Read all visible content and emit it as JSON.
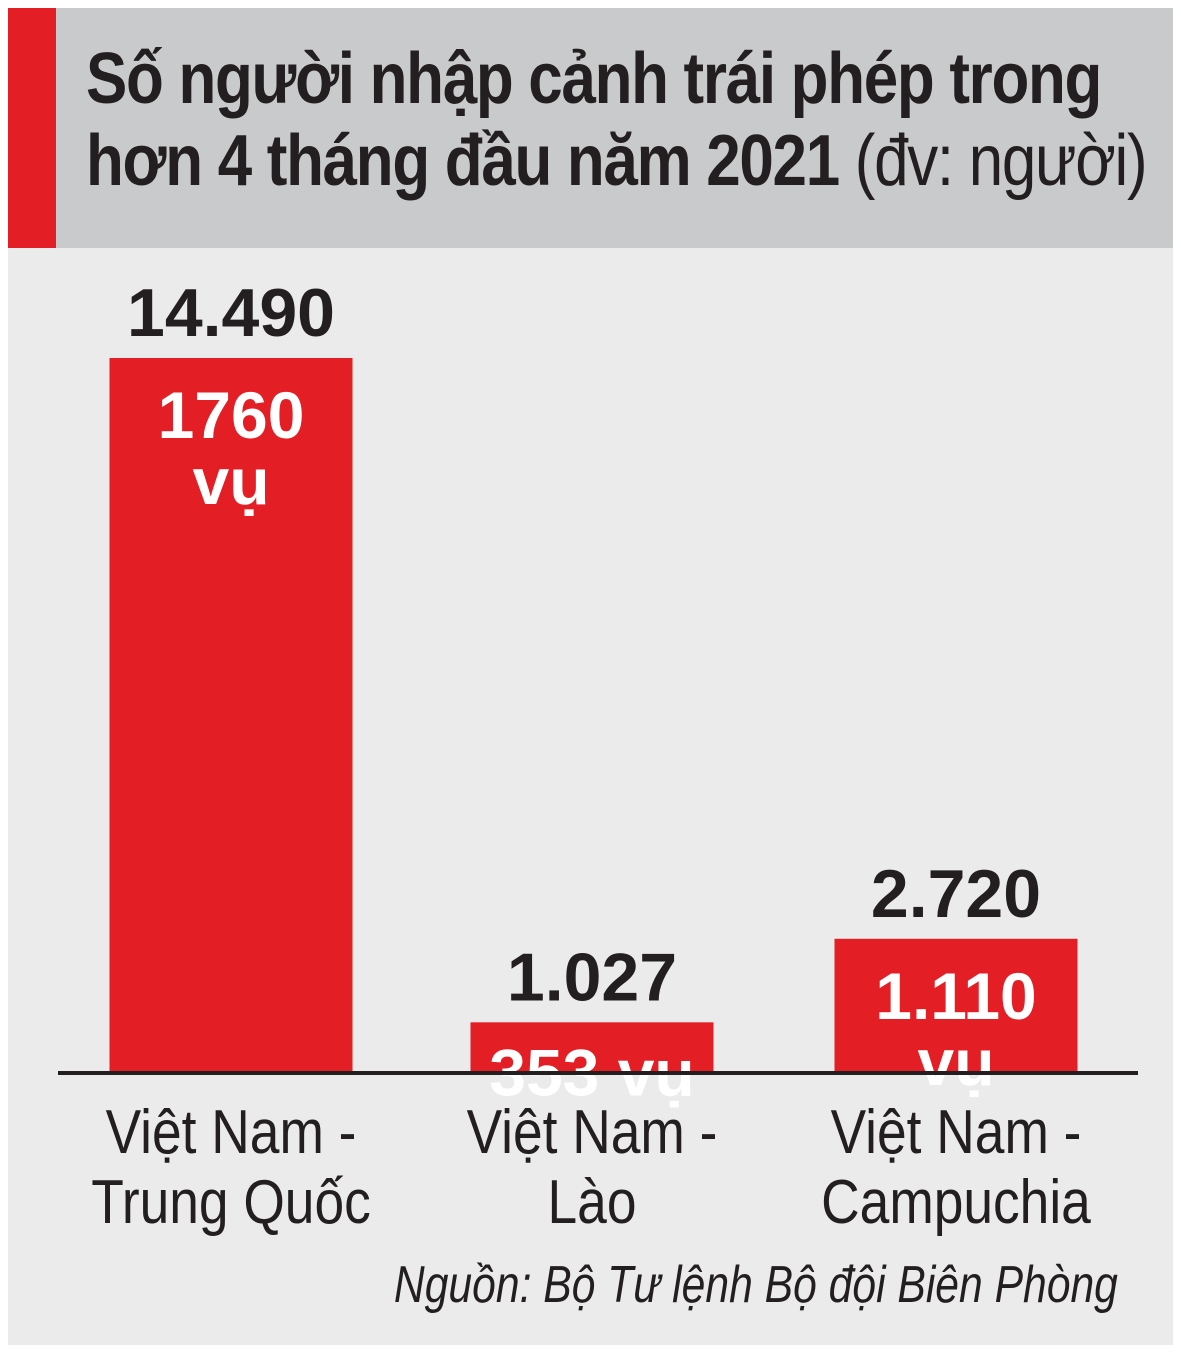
{
  "header": {
    "title": "Số người nhập cảnh trái phép trong hơn 4 tháng đầu năm 2021",
    "unit": "(đv: người)"
  },
  "colors": {
    "accent": "#e31e24",
    "header_bg": "#c9cacb",
    "panel_bg": "#ebebeb",
    "text": "#231f20"
  },
  "chart_data": {
    "type": "bar",
    "title": "Số người nhập cảnh trái phép trong hơn 4 tháng đầu năm 2021",
    "unit": "(đv: người)",
    "categories": [
      [
        "Việt Nam -",
        "Trung Quốc"
      ],
      [
        "Việt Nam -",
        "Lào"
      ],
      [
        "Việt Nam -",
        "Campuchia"
      ]
    ],
    "values": [
      14490,
      1027,
      2720
    ],
    "value_labels": [
      "14.490",
      "1.027",
      "2.720"
    ],
    "inner_labels": [
      [
        "1760",
        "vụ"
      ],
      [
        "353 vụ"
      ],
      [
        "1.110",
        "vụ"
      ]
    ],
    "ylim": [
      0,
      14490
    ]
  },
  "footer": {
    "source": "Nguồn: Bộ Tư lệnh Bộ đội Biên Phòng"
  }
}
